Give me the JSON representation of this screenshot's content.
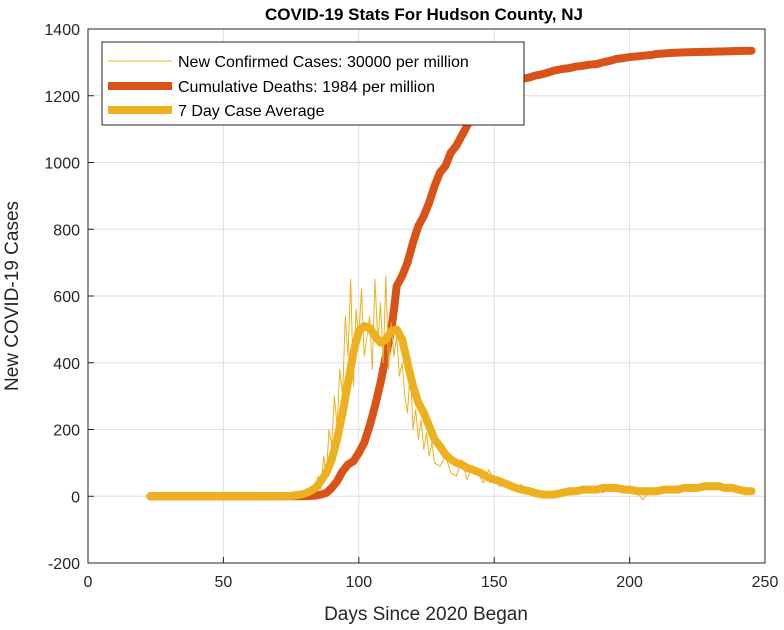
{
  "chart_data": {
    "type": "line",
    "title": "COVID-19 Stats For Hudson County, NJ",
    "xlabel": "Days Since 2020 Began",
    "ylabel": "New COVID-19 Cases",
    "xlim": [
      0,
      250
    ],
    "ylim": [
      -200,
      1400
    ],
    "xticks": [
      0,
      50,
      100,
      150,
      200,
      250
    ],
    "yticks": [
      -200,
      0,
      200,
      400,
      600,
      800,
      1000,
      1200,
      1400
    ],
    "grid": true,
    "legend_position": "top-left",
    "series": [
      {
        "name": "New Confirmed Cases: 30000 per million",
        "color": "#EDB120",
        "x": [
          23,
          60,
          75,
          78,
          80,
          82,
          84,
          85,
          86,
          87,
          88,
          89,
          90,
          91,
          92,
          93,
          94,
          95,
          96,
          97,
          98,
          99,
          100,
          101,
          102,
          103,
          104,
          105,
          106,
          107,
          108,
          109,
          110,
          111,
          112,
          113,
          114,
          115,
          116,
          117,
          118,
          119,
          120,
          121,
          122,
          123,
          124,
          125,
          126,
          127,
          128,
          130,
          132,
          134,
          136,
          138,
          140,
          142,
          144,
          146,
          148,
          150,
          152,
          155,
          158,
          160,
          163,
          165,
          168,
          170,
          172,
          175,
          178,
          180,
          183,
          185,
          188,
          190,
          192,
          195,
          198,
          200,
          202,
          205,
          208,
          210,
          212,
          215,
          218,
          220,
          223,
          225,
          228,
          230,
          232,
          235,
          238,
          240,
          243,
          245
        ],
        "y": [
          0,
          0,
          2,
          5,
          10,
          18,
          30,
          60,
          20,
          120,
          60,
          200,
          150,
          300,
          210,
          380,
          300,
          540,
          420,
          650,
          330,
          560,
          470,
          620,
          420,
          480,
          540,
          380,
          650,
          460,
          580,
          400,
          660,
          380,
          520,
          420,
          480,
          360,
          400,
          300,
          250,
          380,
          200,
          260,
          170,
          230,
          140,
          190,
          120,
          160,
          100,
          90,
          120,
          70,
          60,
          110,
          50,
          90,
          70,
          40,
          80,
          50,
          30,
          40,
          20,
          35,
          10,
          15,
          5,
          10,
          0,
          20,
          15,
          10,
          25,
          15,
          30,
          10,
          20,
          25,
          30,
          10,
          15,
          -10,
          20,
          25,
          15,
          30,
          20,
          25,
          35,
          20,
          30,
          40,
          30,
          20,
          25,
          15,
          20,
          10
        ]
      },
      {
        "name": "Cumulative Deaths: 1984 per million",
        "color": "#D95319",
        "x": [
          23,
          60,
          80,
          84,
          86,
          88,
          90,
          92,
          94,
          96,
          98,
          100,
          102,
          104,
          106,
          108,
          110,
          112,
          113,
          114,
          116,
          118,
          120,
          122,
          124,
          126,
          128,
          130,
          132,
          134,
          136,
          138,
          140,
          142,
          145,
          148,
          150,
          152,
          155,
          158,
          160,
          163,
          165,
          168,
          170,
          172,
          175,
          178,
          180,
          183,
          185,
          188,
          190,
          193,
          195,
          198,
          200,
          203,
          205,
          208,
          210,
          215,
          220,
          225,
          230,
          235,
          240,
          245
        ],
        "y": [
          0,
          0,
          0,
          2,
          5,
          10,
          25,
          45,
          75,
          95,
          105,
          130,
          160,
          210,
          270,
          340,
          420,
          500,
          560,
          630,
          660,
          700,
          760,
          810,
          840,
          880,
          930,
          970,
          990,
          1030,
          1050,
          1080,
          1110,
          1140,
          1170,
          1190,
          1200,
          1215,
          1225,
          1240,
          1250,
          1255,
          1260,
          1265,
          1270,
          1275,
          1280,
          1283,
          1287,
          1290,
          1293,
          1295,
          1300,
          1305,
          1310,
          1313,
          1316,
          1318,
          1320,
          1322,
          1325,
          1328,
          1330,
          1331,
          1332,
          1333,
          1334,
          1335
        ]
      },
      {
        "name": "7 Day Case Average",
        "color": "#EDB120",
        "x": [
          23,
          60,
          75,
          78,
          80,
          82,
          84,
          86,
          88,
          90,
          92,
          94,
          96,
          98,
          100,
          102,
          104,
          106,
          108,
          110,
          112,
          114,
          116,
          118,
          120,
          122,
          124,
          126,
          128,
          130,
          132,
          134,
          136,
          138,
          140,
          142,
          145,
          148,
          150,
          152,
          155,
          158,
          160,
          163,
          165,
          168,
          170,
          172,
          175,
          178,
          180,
          183,
          185,
          188,
          190,
          193,
          195,
          198,
          200,
          203,
          205,
          208,
          210,
          213,
          215,
          218,
          220,
          223,
          225,
          228,
          230,
          233,
          235,
          238,
          240,
          243,
          245
        ],
        "y": [
          0,
          0,
          1,
          4,
          8,
          15,
          25,
          45,
          70,
          110,
          170,
          250,
          340,
          430,
          495,
          510,
          505,
          480,
          460,
          470,
          495,
          500,
          470,
          400,
          330,
          280,
          250,
          210,
          170,
          150,
          125,
          110,
          100,
          95,
          85,
          80,
          70,
          55,
          50,
          45,
          35,
          25,
          20,
          15,
          10,
          5,
          5,
          5,
          10,
          15,
          15,
          20,
          20,
          20,
          25,
          25,
          25,
          20,
          20,
          15,
          15,
          15,
          15,
          20,
          20,
          20,
          25,
          25,
          25,
          30,
          30,
          30,
          25,
          25,
          20,
          15,
          15
        ]
      }
    ]
  }
}
